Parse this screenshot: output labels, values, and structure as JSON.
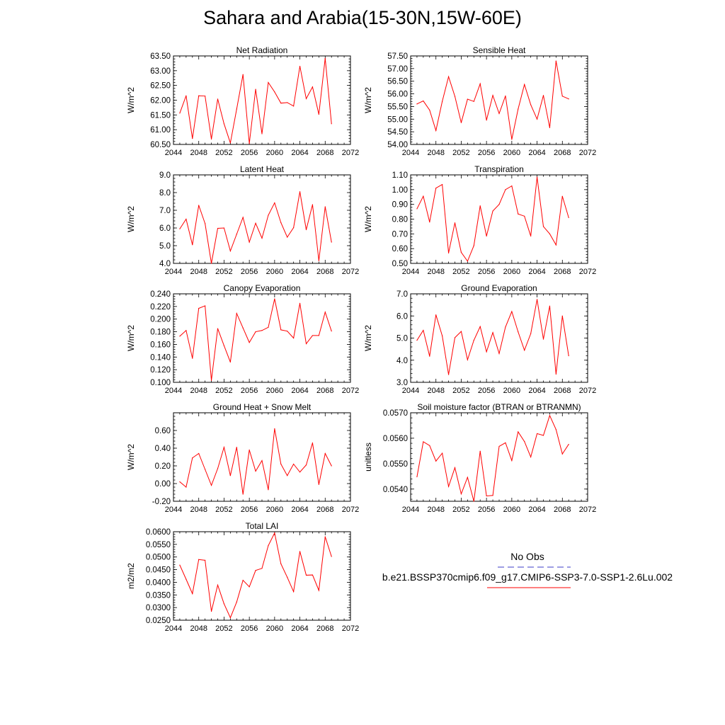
{
  "title": "Sahara and Arabia(15-30N,15W-60E)",
  "legend": {
    "obs_label": "No Obs",
    "obs_color": "#3c3cc8",
    "case_label": "b.e21.BSSP370cmip6.f09_g17.CMIP6-SSP3-7.0-SSP1-2.6Lu.002",
    "case_color": "#ff0000"
  },
  "chart_data": [
    {
      "type": "line",
      "title": "Net Radiation",
      "ylabel": "W/m^2",
      "xlim": [
        2044,
        2072
      ],
      "xticks": [
        "2044",
        "2048",
        "2052",
        "2056",
        "2060",
        "2064",
        "2068",
        "2072"
      ],
      "ylim": [
        60.5,
        63.5
      ],
      "yticks": [
        "60.50",
        "61.00",
        "61.50",
        "62.00",
        "62.50",
        "63.00",
        "63.50"
      ],
      "x": [
        2045,
        2046,
        2047,
        2048,
        2049,
        2050,
        2051,
        2052,
        2053,
        2054,
        2055,
        2056,
        2057,
        2058,
        2059,
        2060,
        2061,
        2062,
        2063,
        2064,
        2065,
        2066,
        2067,
        2068,
        2069
      ],
      "values": [
        61.56,
        62.15,
        60.7,
        62.15,
        62.14,
        60.68,
        62.04,
        61.2,
        60.55,
        61.7,
        62.87,
        60.53,
        62.37,
        60.86,
        62.6,
        62.28,
        61.9,
        61.92,
        61.8,
        63.15,
        62.05,
        62.45,
        61.52,
        63.42,
        61.2
      ],
      "color": "#ff0000"
    },
    {
      "type": "line",
      "title": "Sensible Heat",
      "ylabel": "W/m^2",
      "xlim": [
        2044,
        2072
      ],
      "xticks": [
        "2044",
        "2048",
        "2052",
        "2056",
        "2060",
        "2064",
        "2068",
        "2072"
      ],
      "ylim": [
        54.0,
        57.5
      ],
      "yticks": [
        "54.00",
        "54.50",
        "55.00",
        "55.50",
        "56.00",
        "56.50",
        "57.00",
        "57.50"
      ],
      "x": [
        2045,
        2046,
        2047,
        2048,
        2049,
        2050,
        2051,
        2052,
        2053,
        2054,
        2055,
        2056,
        2057,
        2058,
        2059,
        2060,
        2061,
        2062,
        2063,
        2064,
        2065,
        2066,
        2067,
        2068,
        2069
      ],
      "values": [
        55.6,
        55.72,
        55.36,
        54.55,
        55.7,
        56.68,
        55.9,
        54.86,
        55.79,
        55.7,
        56.4,
        54.96,
        55.94,
        55.22,
        55.92,
        54.2,
        55.4,
        56.37,
        55.57,
        55.0,
        55.94,
        54.66,
        57.3,
        55.91,
        55.8
      ],
      "color": "#ff0000"
    },
    {
      "type": "line",
      "title": "Latent Heat",
      "ylabel": "W/m^2",
      "xlim": [
        2044,
        2072
      ],
      "xticks": [
        "2044",
        "2048",
        "2052",
        "2056",
        "2060",
        "2064",
        "2068",
        "2072"
      ],
      "ylim": [
        4.0,
        9.0
      ],
      "yticks": [
        "4.0",
        "5.0",
        "6.0",
        "7.0",
        "8.0",
        "9.0"
      ],
      "x": [
        2045,
        2046,
        2047,
        2048,
        2049,
        2050,
        2051,
        2052,
        2053,
        2054,
        2055,
        2056,
        2057,
        2058,
        2059,
        2060,
        2061,
        2062,
        2063,
        2064,
        2065,
        2066,
        2067,
        2068,
        2069
      ],
      "values": [
        5.95,
        6.5,
        5.05,
        7.28,
        6.25,
        4.0,
        5.98,
        6.0,
        4.7,
        5.65,
        6.6,
        5.2,
        6.27,
        5.42,
        6.72,
        7.42,
        6.3,
        5.48,
        6.02,
        8.05,
        5.9,
        7.32,
        4.15,
        7.2,
        5.2
      ],
      "color": "#ff0000"
    },
    {
      "type": "line",
      "title": "Transpiration",
      "ylabel": "W/m^2",
      "xlim": [
        2044,
        2072
      ],
      "xticks": [
        "2044",
        "2048",
        "2052",
        "2056",
        "2060",
        "2064",
        "2068",
        "2072"
      ],
      "ylim": [
        0.5,
        1.1
      ],
      "yticks": [
        "0.50",
        "0.60",
        "0.70",
        "0.80",
        "0.90",
        "1.00",
        "1.10"
      ],
      "x": [
        2045,
        2046,
        2047,
        2048,
        2049,
        2050,
        2051,
        2052,
        2053,
        2054,
        2055,
        2056,
        2057,
        2058,
        2059,
        2060,
        2061,
        2062,
        2063,
        2064,
        2065,
        2066,
        2067,
        2068,
        2069
      ],
      "values": [
        0.87,
        0.955,
        0.78,
        1.01,
        1.035,
        0.57,
        0.775,
        0.575,
        0.515,
        0.62,
        0.89,
        0.685,
        0.855,
        0.9,
        1.0,
        1.025,
        0.835,
        0.82,
        0.685,
        1.085,
        0.75,
        0.7,
        0.625,
        0.955,
        0.81
      ],
      "color": "#ff0000"
    },
    {
      "type": "line",
      "title": "Canopy Evaporation",
      "ylabel": "W/m^2",
      "xlim": [
        2044,
        2072
      ],
      "xticks": [
        "2044",
        "2048",
        "2052",
        "2056",
        "2060",
        "2064",
        "2068",
        "2072"
      ],
      "ylim": [
        0.1,
        0.24
      ],
      "yticks": [
        "0.100",
        "0.120",
        "0.140",
        "0.160",
        "0.180",
        "0.200",
        "0.220",
        "0.240"
      ],
      "x": [
        2045,
        2046,
        2047,
        2048,
        2049,
        2050,
        2051,
        2052,
        2053,
        2054,
        2055,
        2056,
        2057,
        2058,
        2059,
        2060,
        2061,
        2062,
        2063,
        2064,
        2065,
        2066,
        2067,
        2068,
        2069
      ],
      "values": [
        0.173,
        0.182,
        0.138,
        0.217,
        0.221,
        0.103,
        0.185,
        0.158,
        0.132,
        0.209,
        0.186,
        0.163,
        0.18,
        0.182,
        0.187,
        0.232,
        0.183,
        0.181,
        0.17,
        0.225,
        0.161,
        0.174,
        0.174,
        0.211,
        0.181
      ],
      "color": "#ff0000"
    },
    {
      "type": "line",
      "title": "Ground Evaporation",
      "ylabel": "W/m^2",
      "xlim": [
        2044,
        2072
      ],
      "xticks": [
        "2044",
        "2048",
        "2052",
        "2056",
        "2060",
        "2064",
        "2068",
        "2072"
      ],
      "ylim": [
        3.0,
        7.0
      ],
      "yticks": [
        "3.0",
        "4.0",
        "5.0",
        "6.0",
        "7.0"
      ],
      "x": [
        2045,
        2046,
        2047,
        2048,
        2049,
        2050,
        2051,
        2052,
        2053,
        2054,
        2055,
        2056,
        2057,
        2058,
        2059,
        2060,
        2061,
        2062,
        2063,
        2064,
        2065,
        2066,
        2067,
        2068,
        2069
      ],
      "values": [
        4.9,
        5.35,
        4.18,
        6.05,
        5.1,
        3.35,
        5.02,
        5.3,
        4.02,
        4.9,
        5.52,
        4.38,
        5.25,
        4.3,
        5.5,
        6.2,
        5.28,
        4.45,
        5.2,
        6.75,
        4.95,
        6.45,
        3.37,
        6.0,
        4.2
      ],
      "color": "#ff0000"
    },
    {
      "type": "line",
      "title": "Ground Heat + Snow Melt",
      "ylabel": "W/m^2",
      "xlim": [
        2044,
        2072
      ],
      "xticks": [
        "2044",
        "2048",
        "2052",
        "2056",
        "2060",
        "2064",
        "2068",
        "2072"
      ],
      "ylim": [
        -0.2,
        0.8
      ],
      "yticks": [
        "-0.20",
        "0.00",
        "0.20",
        "0.40",
        "0.60"
      ],
      "x": [
        2045,
        2046,
        2047,
        2048,
        2049,
        2050,
        2051,
        2052,
        2053,
        2054,
        2055,
        2056,
        2057,
        2058,
        2059,
        2060,
        2061,
        2062,
        2063,
        2064,
        2065,
        2066,
        2067,
        2068,
        2069
      ],
      "values": [
        0.02,
        -0.04,
        0.29,
        0.34,
        0.16,
        -0.02,
        0.17,
        0.41,
        0.09,
        0.41,
        -0.12,
        0.38,
        0.14,
        0.26,
        -0.07,
        0.62,
        0.22,
        0.09,
        0.22,
        0.13,
        0.21,
        0.46,
        -0.01,
        0.34,
        0.2
      ],
      "color": "#ff0000"
    },
    {
      "type": "line",
      "title": "Soil moisture factor (BTRAN or BTRANMN)",
      "ylabel": "unitless",
      "xlim": [
        2044,
        2072
      ],
      "xticks": [
        "2044",
        "2048",
        "2052",
        "2056",
        "2060",
        "2064",
        "2068",
        "2072"
      ],
      "ylim": [
        0.05352,
        0.057
      ],
      "yticks": [
        "0.0540",
        "0.0550",
        "0.0560",
        "0.0570"
      ],
      "x": [
        2045,
        2046,
        2047,
        2048,
        2049,
        2050,
        2051,
        2052,
        2053,
        2054,
        2055,
        2056,
        2057,
        2058,
        2059,
        2060,
        2061,
        2062,
        2063,
        2064,
        2065,
        2066,
        2067,
        2068,
        2069
      ],
      "values": [
        0.05448,
        0.05586,
        0.05571,
        0.0551,
        0.05541,
        0.0541,
        0.05484,
        0.05381,
        0.05446,
        0.05352,
        0.05549,
        0.05373,
        0.05375,
        0.05568,
        0.05582,
        0.05512,
        0.05625,
        0.05587,
        0.05526,
        0.05618,
        0.05611,
        0.05689,
        0.05634,
        0.05538,
        0.05576
      ],
      "color": "#ff0000"
    },
    {
      "type": "line",
      "title": "Total LAI",
      "ylabel": "m2/m2",
      "xlim": [
        2044,
        2072
      ],
      "xticks": [
        "2044",
        "2048",
        "2052",
        "2056",
        "2060",
        "2064",
        "2068",
        "2072"
      ],
      "ylim": [
        0.025,
        0.06
      ],
      "yticks": [
        "0.0250",
        "0.0300",
        "0.0350",
        "0.0400",
        "0.0450",
        "0.0500",
        "0.0550",
        "0.0600"
      ],
      "x": [
        2045,
        2046,
        2047,
        2048,
        2049,
        2050,
        2051,
        2052,
        2053,
        2054,
        2055,
        2056,
        2057,
        2058,
        2059,
        2060,
        2061,
        2062,
        2063,
        2064,
        2065,
        2066,
        2067,
        2068,
        2069
      ],
      "values": [
        0.0468,
        0.0412,
        0.0355,
        0.049,
        0.0487,
        0.0285,
        0.0389,
        0.0315,
        0.026,
        0.0322,
        0.0408,
        0.0382,
        0.0447,
        0.0455,
        0.0545,
        0.0595,
        0.0473,
        0.042,
        0.0363,
        0.0522,
        0.0428,
        0.0429,
        0.0368,
        0.058,
        0.0502
      ],
      "color": "#ff0000"
    }
  ]
}
